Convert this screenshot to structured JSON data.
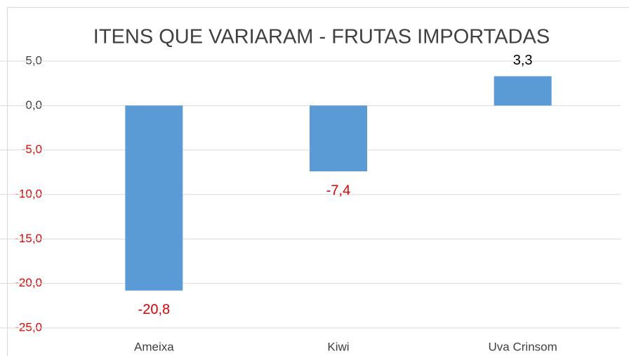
{
  "chart_data": {
    "type": "bar",
    "title": "ITENS QUE VARIARAM - FRUTAS IMPORTADAS",
    "categories": [
      "Ameixa",
      "Kiwi",
      "Uva Crinsom"
    ],
    "values": [
      -20.8,
      -7.4,
      3.3
    ],
    "value_labels": [
      "-20,8",
      "-7,4",
      "3,3"
    ],
    "color": "#5b9bd5",
    "ylim": [
      -25,
      5
    ],
    "yticks": [
      {
        "value": 5,
        "label": "5,0"
      },
      {
        "value": 0,
        "label": "0,0"
      },
      {
        "value": -5,
        "label": "-5,0"
      },
      {
        "value": -10,
        "label": "-10,0"
      },
      {
        "value": -15,
        "label": "-15,0"
      },
      {
        "value": -20,
        "label": "-20,0"
      },
      {
        "value": -25,
        "label": "-25,0"
      }
    ],
    "grid": true
  }
}
